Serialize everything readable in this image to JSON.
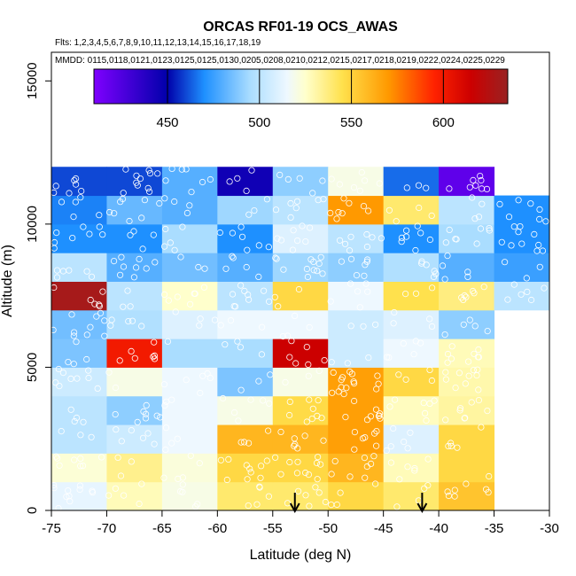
{
  "chart_data": {
    "type": "heatmap",
    "title": "ORCAS RF01-19 OCS_AWAS",
    "flights_label": "Flts: 1,2,3,4,5,6,7,8,9,10,11,12,13,14,15,16,17,18,19",
    "dates_label": "MMDD: 0115,0118,0121,0123,0125,0125,0130,0205,0208,0210,0212,0215,0217,0218,0219,0222,0224,0225,0229",
    "xlabel": "Latitude (deg N)",
    "ylabel": "Altitude (m)",
    "xlim": [
      -75,
      -30
    ],
    "ylim": [
      0,
      16000
    ],
    "x_ticks": [
      -75,
      -70,
      -65,
      -60,
      -55,
      -50,
      -45,
      -40,
      -35,
      -30
    ],
    "y_ticks": [
      0,
      5000,
      10000,
      15000
    ],
    "cell_width_deg": 5,
    "cell_height_m": 1000,
    "colorbar": {
      "range": [
        410,
        635
      ],
      "ticks": [
        450,
        500,
        550,
        600
      ],
      "stops": [
        {
          "value": 410,
          "color": "#7f00ff"
        },
        {
          "value": 450,
          "color": "#0000aa"
        },
        {
          "value": 470,
          "color": "#1e90ff"
        },
        {
          "value": 495,
          "color": "#aaddff"
        },
        {
          "value": 515,
          "color": "#eef8ff"
        },
        {
          "value": 525,
          "color": "#ffffcc"
        },
        {
          "value": 545,
          "color": "#ffe14d"
        },
        {
          "value": 570,
          "color": "#ff9900"
        },
        {
          "value": 595,
          "color": "#ff2200"
        },
        {
          "value": 615,
          "color": "#cc0000"
        },
        {
          "value": 635,
          "color": "#992222"
        }
      ]
    },
    "rows": [
      {
        "alt": [
          0,
          1000
        ],
        "values": [
          513,
          528,
          520,
          540,
          540,
          548,
          540,
          555,
          null
        ]
      },
      {
        "alt": [
          1000,
          2000
        ],
        "values": [
          523,
          535,
          522,
          548,
          548,
          560,
          528,
          548,
          null
        ]
      },
      {
        "alt": [
          2000,
          3000
        ],
        "values": [
          500,
          505,
          515,
          560,
          560,
          568,
          510,
          548,
          null
        ]
      },
      {
        "alt": [
          3000,
          4000
        ],
        "values": [
          500,
          490,
          515,
          520,
          547,
          568,
          527,
          532,
          null
        ]
      },
      {
        "alt": [
          4000,
          5000
        ],
        "values": [
          505,
          520,
          515,
          487,
          520,
          568,
          548,
          530,
          null
        ]
      },
      {
        "alt": [
          5000,
          6000
        ],
        "values": [
          487,
          600,
          495,
          495,
          615,
          505,
          515,
          528,
          null
        ]
      },
      {
        "alt": [
          6000,
          7000
        ],
        "values": [
          485,
          497,
          510,
          515,
          515,
          505,
          510,
          490,
          null
        ]
      },
      {
        "alt": [
          7000,
          8000
        ],
        "values": [
          630,
          500,
          525,
          500,
          548,
          515,
          545,
          537,
          500
        ]
      },
      {
        "alt": [
          8000,
          9000
        ],
        "values": [
          500,
          480,
          485,
          480,
          493,
          490,
          497,
          480,
          475
        ]
      },
      {
        "alt": [
          9000,
          10000
        ],
        "values": [
          470,
          470,
          495,
          470,
          510,
          500,
          470,
          495,
          470
        ]
      },
      {
        "alt": [
          10000,
          11000
        ],
        "values": [
          468,
          483,
          480,
          493,
          500,
          570,
          540,
          500,
          470
        ]
      },
      {
        "alt": [
          11000,
          12000
        ],
        "values": [
          460,
          460,
          480,
          445,
          490,
          520,
          465,
          420,
          null
        ]
      }
    ],
    "dot_count": 600,
    "arrows_at_latitude": [
      -53,
      -41.5
    ]
  }
}
